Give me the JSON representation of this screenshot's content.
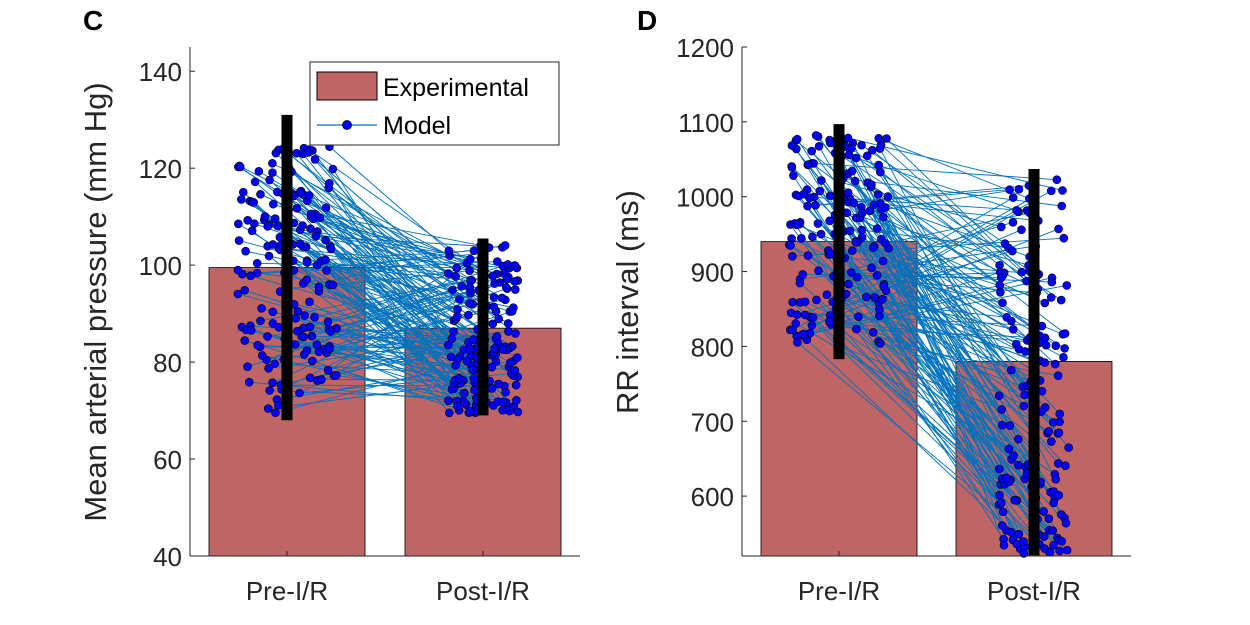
{
  "colors": {
    "bar_fill": "#c06565",
    "bar_edge": "#000000",
    "model_line": "#0072bd",
    "model_marker": "#0000ff",
    "errorbar": "#000000"
  },
  "legend": {
    "experimental_label": "Experimental",
    "model_label": "Model",
    "placement": "top-right of panel C"
  },
  "chart_data": [
    {
      "panel": "C",
      "type": "bar",
      "ylabel": "Mean arterial pressure (mm Hg)",
      "ylim": [
        40,
        145
      ],
      "yticks": [
        40,
        60,
        80,
        100,
        120,
        140
      ],
      "categories": [
        "Pre-I/R",
        "Post-I/R"
      ],
      "grid": false,
      "series": [
        {
          "name": "Experimental",
          "type": "bar",
          "values": [
            99.5,
            87
          ],
          "error_low": [
            68,
            69
          ],
          "error_high": [
            131,
            105.5
          ]
        },
        {
          "name": "Model",
          "type": "paired-scatter",
          "pre_range": [
            69,
            125
          ],
          "post_range": [
            69.5,
            104.5
          ]
        }
      ]
    },
    {
      "panel": "D",
      "type": "bar",
      "ylabel": "RR interval (ms)",
      "ylim": [
        520,
        1200
      ],
      "yticks": [
        600,
        700,
        800,
        900,
        1000,
        1100,
        1200
      ],
      "categories": [
        "Pre-I/R",
        "Post-I/R"
      ],
      "grid": false,
      "series": [
        {
          "name": "Experimental",
          "type": "bar",
          "values": [
            940,
            780
          ],
          "error_low": [
            783,
            521
          ],
          "error_high": [
            1097,
            1037
          ]
        },
        {
          "name": "Model",
          "type": "paired-scatter",
          "pre_range": [
            800,
            1086
          ],
          "post_range": [
            521,
            1035
          ]
        }
      ]
    }
  ]
}
